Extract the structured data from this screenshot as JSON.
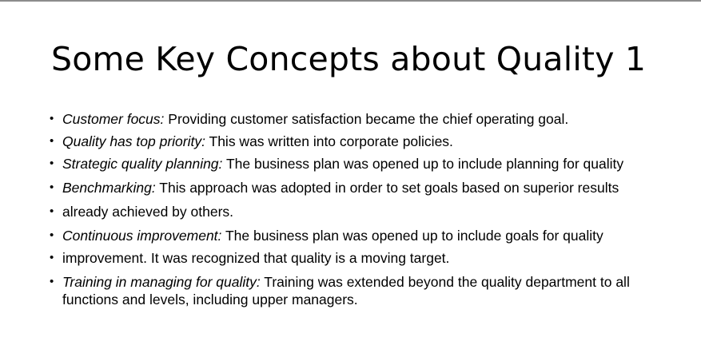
{
  "slide": {
    "title": "Some Key Concepts about Quality 1",
    "bullet_glyph": "•",
    "bullets": [
      {
        "term": "Customer focus:",
        "text": " Providing customer satisfaction became the chief operating goal."
      },
      {
        "term": "Quality has top priority:",
        "text": " This was written into corporate policies."
      },
      {
        "term": "Strategic quality planning:",
        "text": " The business plan was opened up to include planning for quality"
      },
      {
        "term": "Benchmarking:",
        "text": " This approach was adopted in order to set goals based on superior results"
      },
      {
        "term": "",
        "text": "already achieved by others."
      },
      {
        "term": "Continuous improvement:",
        "text": " The business plan was opened up to include goals for quality"
      },
      {
        "term": "",
        "text": "improvement. It was recognized that quality is a moving target."
      },
      {
        "term": "Training in managing for quality:",
        "text": " Training was extended beyond the quality department to all functions and levels, including upper managers."
      }
    ]
  }
}
